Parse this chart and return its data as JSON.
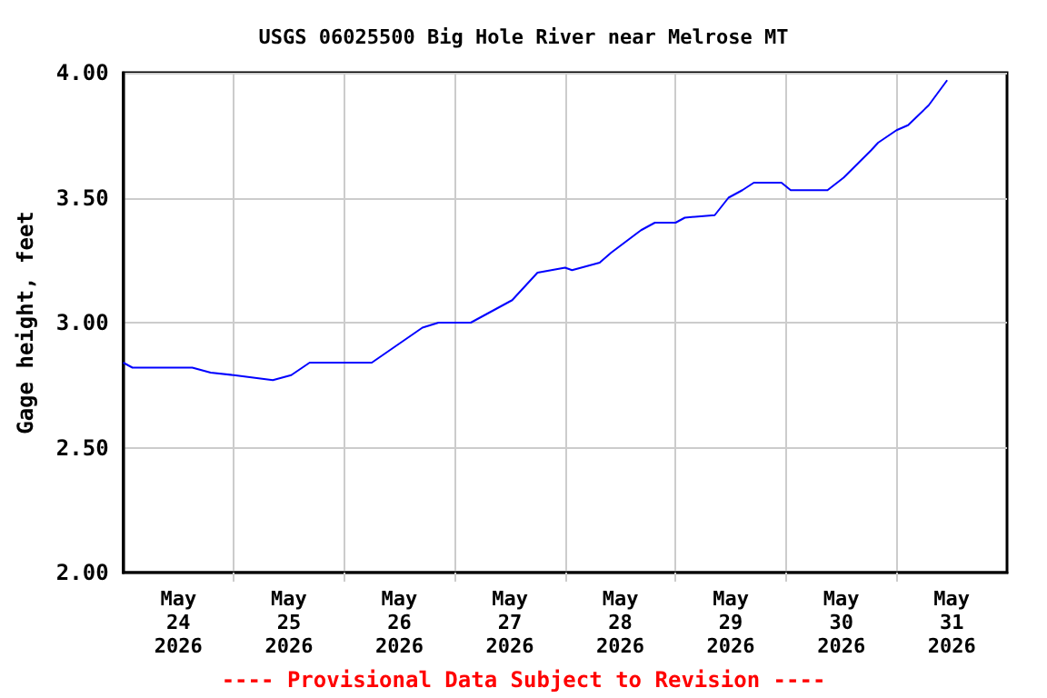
{
  "chart_data": {
    "type": "line",
    "title": "USGS 06025500 Big Hole River near Melrose MT",
    "ylabel": "Gage height, feet",
    "annotations": [
      "---- Provisional Data Subject to Revision ----"
    ],
    "x": [
      "2026-05-24T00:00",
      "2026-05-24T02:00",
      "2026-05-24T15:00",
      "2026-05-24T19:00",
      "2026-05-25T00:00",
      "2026-05-25T08:30",
      "2026-05-25T12:30",
      "2026-05-25T16:30",
      "2026-05-26T06:00",
      "2026-05-26T17:00",
      "2026-05-26T20:30",
      "2026-05-27T03:30",
      "2026-05-27T12:30",
      "2026-05-27T18:00",
      "2026-05-28T00:00",
      "2026-05-28T01:30",
      "2026-05-28T07:30",
      "2026-05-28T10:00",
      "2026-05-28T16:30",
      "2026-05-28T19:30",
      "2026-05-29T00:00",
      "2026-05-29T02:00",
      "2026-05-29T08:30",
      "2026-05-29T11:30",
      "2026-05-29T14:30",
      "2026-05-29T17:00",
      "2026-05-29T23:00",
      "2026-05-30T01:00",
      "2026-05-30T09:00",
      "2026-05-30T12:30",
      "2026-05-30T18:30",
      "2026-05-30T20:00",
      "2026-05-31T00:00",
      "2026-05-31T02:30",
      "2026-05-31T07:00",
      "2026-05-31T11:00"
    ],
    "series": [
      {
        "color": "#0000ff",
        "values": [
          2.84,
          2.82,
          2.82,
          2.8,
          2.79,
          2.77,
          2.79,
          2.84,
          2.84,
          2.98,
          3.0,
          3.0,
          3.09,
          3.2,
          3.22,
          3.21,
          3.24,
          3.28,
          3.37,
          3.4,
          3.4,
          3.42,
          3.43,
          3.5,
          3.53,
          3.56,
          3.56,
          3.53,
          3.53,
          3.58,
          3.69,
          3.72,
          3.77,
          3.79,
          3.87,
          3.97
        ]
      }
    ],
    "xlim": [
      "2026-05-24T00:00",
      "2026-06-01T00:00"
    ],
    "xticks": [
      {
        "value": "2026-05-24T12:00",
        "label": "May\n24\n2026"
      },
      {
        "value": "2026-05-25T00:00",
        "label": null
      },
      {
        "value": "2026-05-25T12:00",
        "label": "May\n25\n2026"
      },
      {
        "value": "2026-05-26T00:00",
        "label": null
      },
      {
        "value": "2026-05-26T12:00",
        "label": "May\n26\n2026"
      },
      {
        "value": "2026-05-27T00:00",
        "label": null
      },
      {
        "value": "2026-05-27T12:00",
        "label": "May\n27\n2026"
      },
      {
        "value": "2026-05-28T00:00",
        "label": null
      },
      {
        "value": "2026-05-28T12:00",
        "label": "May\n28\n2026"
      },
      {
        "value": "2026-05-29T00:00",
        "label": null
      },
      {
        "value": "2026-05-29T12:00",
        "label": "May\n29\n2026"
      },
      {
        "value": "2026-05-30T00:00",
        "label": null
      },
      {
        "value": "2026-05-30T12:00",
        "label": "May\n30\n2026"
      },
      {
        "value": "2026-05-31T00:00",
        "label": null
      },
      {
        "value": "2026-05-31T12:00",
        "label": "May\n31\n2026"
      }
    ],
    "ylim": [
      2,
      4
    ],
    "yticks": [
      {
        "value": 2,
        "label": "2.00"
      },
      {
        "value": 2.5,
        "label": "2.50"
      },
      {
        "value": 3,
        "label": "3.00"
      },
      {
        "value": 3.5,
        "label": "3.50"
      },
      {
        "value": 4,
        "label": "4.00"
      }
    ],
    "grid": true,
    "marker": "none",
    "line_style": "solid"
  }
}
